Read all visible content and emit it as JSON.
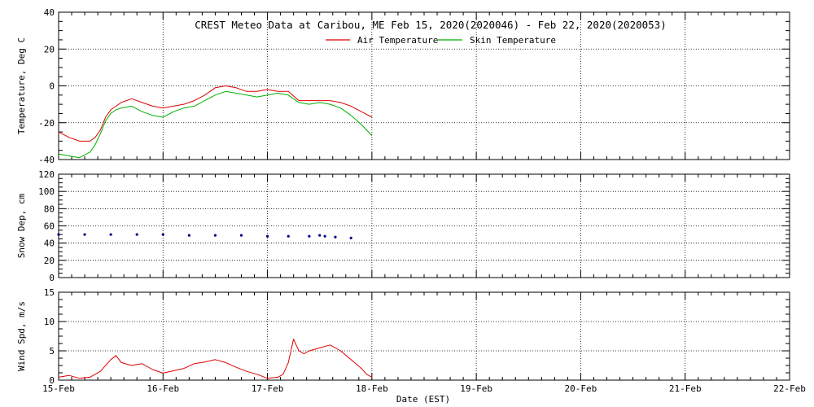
{
  "chart_data": {
    "type": "line",
    "title": "CREST Meteo Data at Caribou, ME   Feb 15, 2020(2020046) - Feb 22, 2020(2020053)",
    "xlabel": "Date (EST)",
    "x_categories": [
      "15-Feb",
      "16-Feb",
      "17-Feb",
      "18-Feb",
      "19-Feb",
      "20-Feb",
      "21-Feb",
      "22-Feb"
    ],
    "x_range_days": [
      0,
      7
    ],
    "grid": true,
    "panels": [
      {
        "id": "temperature",
        "ylabel": "Temperature, Deg C",
        "ylim": [
          -40,
          40
        ],
        "yticks": [
          -40,
          -20,
          0,
          20,
          40
        ],
        "legend_position": "top-center",
        "series": [
          {
            "name": "Air Temperature",
            "color": "#e00000",
            "x": [
              0,
              0.1,
              0.2,
              0.3,
              0.35,
              0.4,
              0.45,
              0.5,
              0.55,
              0.6,
              0.7,
              0.8,
              0.9,
              1.0,
              1.1,
              1.2,
              1.3,
              1.4,
              1.5,
              1.6,
              1.7,
              1.8,
              1.9,
              2.0,
              2.1,
              2.2,
              2.3,
              2.4,
              2.5,
              2.6,
              2.7,
              2.8,
              2.9,
              3.0
            ],
            "values": [
              -25,
              -28,
              -30,
              -30,
              -28,
              -24,
              -17,
              -13,
              -11,
              -9,
              -7,
              -9,
              -11,
              -12,
              -11,
              -10,
              -8,
              -5,
              -1,
              0,
              -1,
              -3,
              -3,
              -2,
              -3,
              -3,
              -8,
              -8,
              -8,
              -8,
              -9,
              -11,
              -14,
              -17
            ]
          },
          {
            "name": "Skin Temperature",
            "color": "#00b000",
            "x": [
              0,
              0.1,
              0.2,
              0.3,
              0.35,
              0.4,
              0.45,
              0.5,
              0.55,
              0.6,
              0.7,
              0.8,
              0.9,
              1.0,
              1.1,
              1.2,
              1.3,
              1.4,
              1.5,
              1.6,
              1.7,
              1.8,
              1.9,
              2.0,
              2.1,
              2.2,
              2.3,
              2.4,
              2.5,
              2.6,
              2.7,
              2.8,
              2.9,
              3.0
            ],
            "values": [
              -37,
              -38,
              -39,
              -36,
              -32,
              -26,
              -19,
              -15,
              -13,
              -12,
              -11,
              -14,
              -16,
              -17,
              -14,
              -12,
              -11,
              -8,
              -5,
              -3,
              -4,
              -5,
              -6,
              -5,
              -4,
              -5,
              -9,
              -10,
              -9,
              -10,
              -12,
              -16,
              -21,
              -27
            ]
          }
        ]
      },
      {
        "id": "snow-depth",
        "ylabel": "Snow Dep, cm",
        "ylim": [
          0,
          120
        ],
        "yticks": [
          0,
          20,
          40,
          60,
          80,
          100,
          120
        ],
        "series": [
          {
            "name": "",
            "color": "#000080",
            "x": [
              0,
              0.25,
              0.5,
              0.75,
              1.0,
              1.25,
              1.5,
              1.75,
              2.0,
              2.2,
              2.4,
              2.5,
              2.55,
              2.65,
              2.8
            ],
            "values": [
              50,
              50,
              50,
              50,
              50,
              49,
              49,
              49,
              48,
              48,
              48,
              49,
              48,
              47,
              46
            ]
          }
        ]
      },
      {
        "id": "wind-speed",
        "ylabel": "Wind Spd, m/s",
        "ylim": [
          0,
          15
        ],
        "yticks": [
          0,
          5,
          10,
          15
        ],
        "series": [
          {
            "name": "",
            "color": "#e00000",
            "x": [
              0,
              0.1,
              0.2,
              0.3,
              0.4,
              0.5,
              0.55,
              0.6,
              0.7,
              0.8,
              0.9,
              1.0,
              1.1,
              1.2,
              1.3,
              1.4,
              1.5,
              1.6,
              1.7,
              1.8,
              1.9,
              2.0,
              2.1,
              2.15,
              2.2,
              2.25,
              2.3,
              2.35,
              2.4,
              2.5,
              2.6,
              2.7,
              2.8,
              2.9,
              2.95,
              3.0
            ],
            "values": [
              0.5,
              0.8,
              0.3,
              0.5,
              1.5,
              3.5,
              4.2,
              3.0,
              2.5,
              2.8,
              1.8,
              1.2,
              1.6,
              2.0,
              2.8,
              3.1,
              3.5,
              3.0,
              2.2,
              1.5,
              1.0,
              0.3,
              0.5,
              1.0,
              3.0,
              7.0,
              5.0,
              4.5,
              5.0,
              5.5,
              6.0,
              5.0,
              3.5,
              2.0,
              1.0,
              0.5
            ]
          }
        ]
      }
    ]
  }
}
